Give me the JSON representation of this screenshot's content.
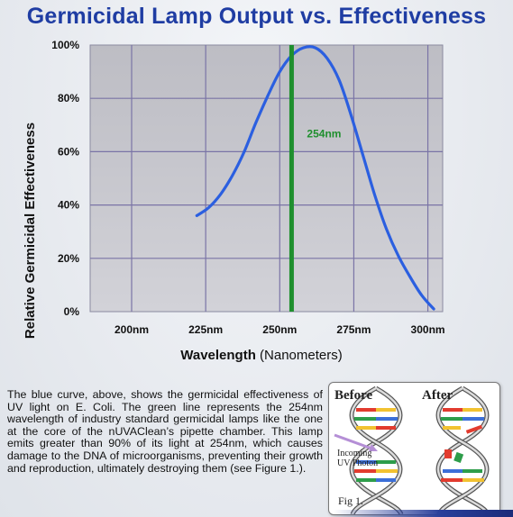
{
  "title": "Germicidal Lamp Output vs. Effectiveness",
  "chart_data": {
    "type": "line",
    "title": "Germicidal Lamp Output vs. Effectiveness",
    "xlabel_bold": "Wavelength",
    "xlabel_rest": "(Nanometers)",
    "ylabel": "Relative Germicidal Effectiveness",
    "xlim": [
      186,
      305
    ],
    "ylim": [
      0,
      100
    ],
    "x_ticks": [
      200,
      225,
      250,
      275,
      300
    ],
    "x_tick_labels": [
      "200nm",
      "225nm",
      "250nm",
      "275nm",
      "300nm"
    ],
    "y_ticks": [
      0,
      20,
      40,
      60,
      80,
      100
    ],
    "y_tick_labels": [
      "0%",
      "20%",
      "40%",
      "60%",
      "80%",
      "100%"
    ],
    "grid": true,
    "series": [
      {
        "color": "#2b5fe0",
        "x": [
          222,
          226,
          230,
          234,
          238,
          242,
          246,
          250,
          254,
          258,
          262,
          266,
          270,
          274,
          278,
          282,
          286,
          290,
          294,
          298,
          302
        ],
        "y": [
          36,
          39,
          44,
          51,
          60,
          71,
          81,
          90,
          96,
          99,
          99,
          95,
          87,
          74,
          59,
          44,
          31,
          21,
          13,
          6,
          1
        ]
      }
    ],
    "annotations": [
      {
        "type": "vline",
        "x": 254,
        "color": "#1f8f2e",
        "label": "254nm"
      }
    ]
  },
  "caption": "The blue curve, above, shows the germicidal effectiveness of UV light on E. Coli. The green line represents the 254nm wavelength of industry standard germicidal lamps like the one at the core of the nUVAClean’s pipette chamber. This lamp emits greater than 90% of its light at 254nm, which causes damage to the DNA of microorganisms, preventing their growth and reproduction, ultimately destroying them (see Figure 1.).",
  "figure": {
    "before_label": "Before",
    "after_label": "After",
    "photon_label_line1": "Incoming",
    "photon_label_line2": "UV Photon",
    "fig_label": "Fig 1."
  }
}
